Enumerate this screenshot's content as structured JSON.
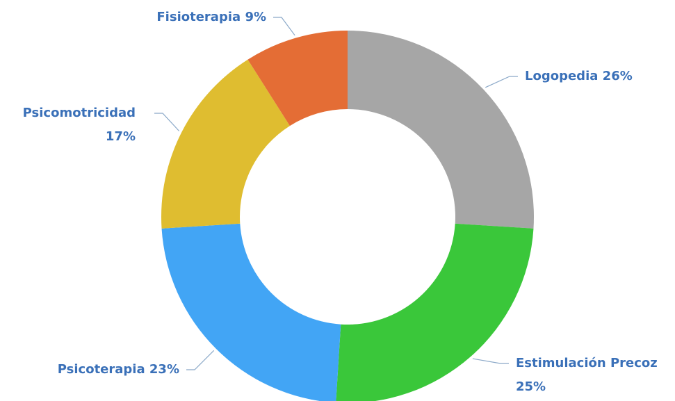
{
  "chart_data": {
    "type": "donut",
    "categories": [
      "Logopedia",
      "Estimulación Precoz",
      "Psicoterapia",
      "Psicomotricidad",
      "Fisioterapia"
    ],
    "values": [
      26,
      25,
      23,
      17,
      9
    ],
    "value_labels": [
      "26%",
      "25%",
      "23%",
      "17%",
      "9%"
    ],
    "colors": [
      "#a6a6a6",
      "#3ac73a",
      "#42a5f5",
      "#dfbd30",
      "#e46d35"
    ]
  }
}
